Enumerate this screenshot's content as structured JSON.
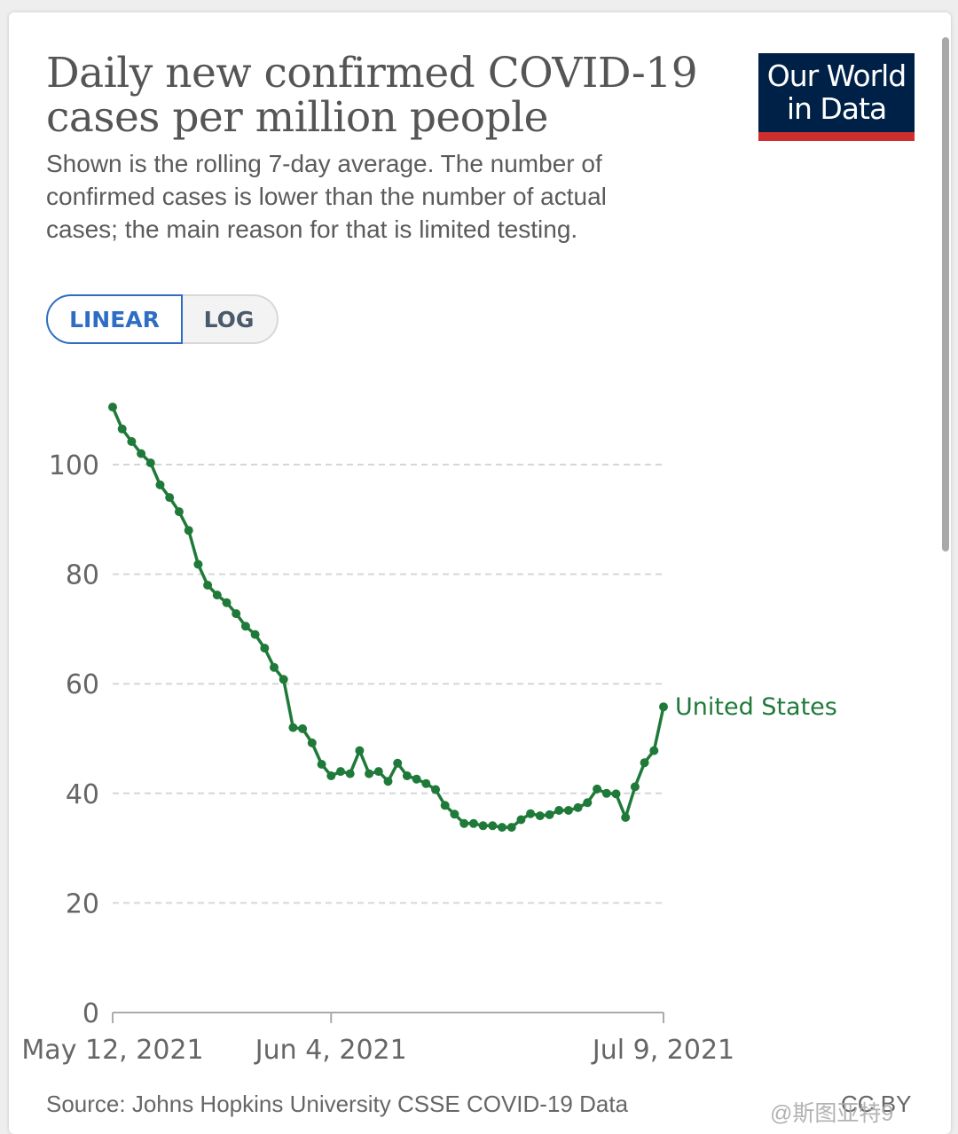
{
  "title": "Daily new confirmed COVID-19 cases per million people",
  "subtitle": "Shown is the rolling 7-day average. The number of confirmed cases is lower than the number of actual cases; the main reason for that is limited testing.",
  "logo": {
    "line1": "Our World",
    "line2": "in Data"
  },
  "scale_toggle": {
    "linear_label": "LINEAR",
    "log_label": "LOG",
    "selected": "LINEAR"
  },
  "source": "Source: Johns Hopkins University CSSE COVID-19 Data",
  "license": "CC BY",
  "watermark": "@斯图亚特9",
  "colors": {
    "series": "#1f7a3a",
    "accent": "#2d6dc3",
    "logo_bg": "#002147",
    "logo_stripe": "#cf2e2e"
  },
  "chart_data": {
    "type": "line",
    "title": "Daily new confirmed COVID-19 cases per million people",
    "ylim": [
      0,
      110
    ],
    "yticks": [
      0,
      20,
      40,
      60,
      80,
      100
    ],
    "grid": true,
    "xticks": [
      {
        "date": "2021-05-12",
        "label": "May 12, 2021"
      },
      {
        "date": "2021-06-04",
        "label": "Jun 4, 2021"
      },
      {
        "date": "2021-07-09",
        "label": "Jul 9, 2021"
      }
    ],
    "series": [
      {
        "name": "United States",
        "color": "#1f7a3a",
        "x": [
          "2021-05-12",
          "2021-05-13",
          "2021-05-14",
          "2021-05-15",
          "2021-05-16",
          "2021-05-17",
          "2021-05-18",
          "2021-05-19",
          "2021-05-20",
          "2021-05-21",
          "2021-05-22",
          "2021-05-23",
          "2021-05-24",
          "2021-05-25",
          "2021-05-26",
          "2021-05-27",
          "2021-05-28",
          "2021-05-29",
          "2021-05-30",
          "2021-05-31",
          "2021-06-01",
          "2021-06-02",
          "2021-06-03",
          "2021-06-04",
          "2021-06-05",
          "2021-06-06",
          "2021-06-07",
          "2021-06-08",
          "2021-06-09",
          "2021-06-10",
          "2021-06-11",
          "2021-06-12",
          "2021-06-13",
          "2021-06-14",
          "2021-06-15",
          "2021-06-16",
          "2021-06-17",
          "2021-06-18",
          "2021-06-19",
          "2021-06-20",
          "2021-06-21",
          "2021-06-22",
          "2021-06-23",
          "2021-06-24",
          "2021-06-25",
          "2021-06-26",
          "2021-06-27",
          "2021-06-28",
          "2021-06-29",
          "2021-06-30",
          "2021-07-01",
          "2021-07-02",
          "2021-07-03",
          "2021-07-04",
          "2021-07-05",
          "2021-07-06",
          "2021-07-07",
          "2021-07-08",
          "2021-07-09"
        ],
        "values": [
          110.5,
          106.5,
          104.2,
          102,
          100.3,
          96.3,
          94,
          91.4,
          88,
          81.8,
          78,
          76.2,
          74.8,
          72.8,
          70.5,
          69,
          66.5,
          63,
          60.8,
          52,
          51.8,
          49.2,
          45.3,
          43.2,
          44,
          43.6,
          47.8,
          43.6,
          44,
          42.2,
          45.5,
          43.2,
          42.6,
          41.8,
          40.7,
          37.8,
          36.2,
          34.5,
          34.5,
          34.1,
          34.1,
          33.8,
          33.8,
          35.2,
          36.3,
          35.9,
          36.1,
          36.9,
          36.9,
          37.4,
          38.3,
          40.8,
          40,
          39.9,
          35.6,
          41.2,
          45.6,
          47.8,
          55.8
        ]
      }
    ]
  }
}
